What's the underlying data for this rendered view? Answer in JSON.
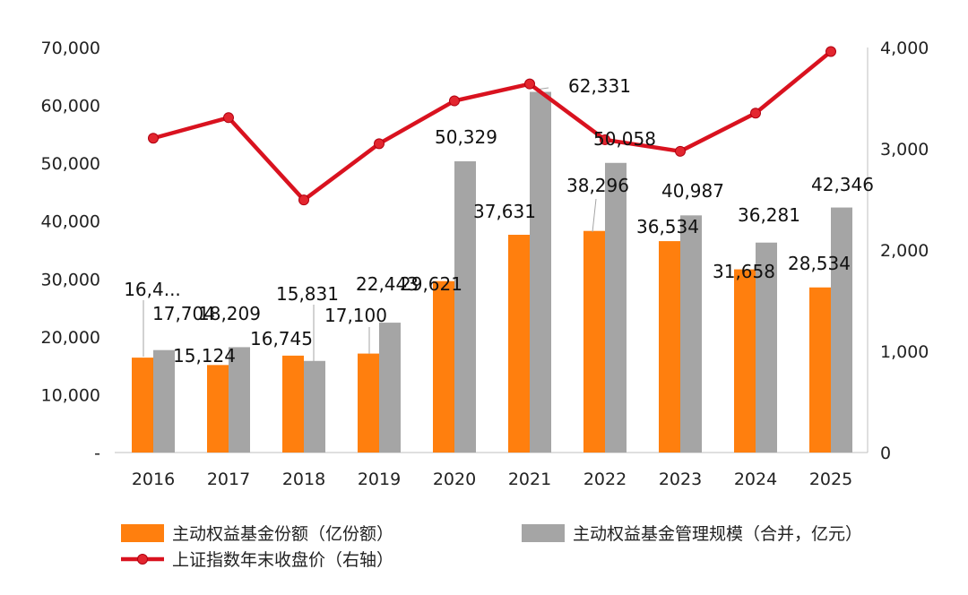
{
  "chart_data": {
    "type": "bar",
    "categories": [
      "2016",
      "2017",
      "2018",
      "2019",
      "2020",
      "2021",
      "2022",
      "2023",
      "2024",
      "2025"
    ],
    "series": [
      {
        "name": "主动权益基金份额（亿份额）",
        "kind": "bar",
        "axis": "left",
        "color": "#ff7f0e",
        "values": [
          16400,
          15124,
          16745,
          17100,
          29621,
          37631,
          38296,
          36534,
          31658,
          28534
        ],
        "labels": [
          "16,4...",
          "15,124",
          "16,745",
          "17,100",
          "29,621",
          "37,631",
          "38,296",
          "36,534",
          "31,658",
          "28,534"
        ]
      },
      {
        "name": "主动权益基金管理规模（合并，亿元）",
        "kind": "bar",
        "axis": "left",
        "color": "#a5a5a5",
        "values": [
          17704,
          18209,
          15831,
          22443,
          50329,
          62331,
          50058,
          40987,
          36281,
          42346
        ],
        "labels": [
          "17,704",
          "18,209",
          "15,831",
          "22,443",
          "50,329",
          "62,331",
          "50,058",
          "40,987",
          "36,281",
          "42,346"
        ]
      },
      {
        "name": "上证指数年末收盘价（右轴）",
        "kind": "line",
        "axis": "right",
        "color": "#d9121f",
        "values": [
          3104,
          3307,
          2494,
          3050,
          3473,
          3640,
          3089,
          2975,
          3352,
          3960
        ]
      }
    ],
    "left_axis": {
      "ylim": [
        0,
        70000
      ],
      "ticks": [
        "-",
        "10,000",
        "20,000",
        "30,000",
        "40,000",
        "50,000",
        "60,000",
        "70,000"
      ]
    },
    "right_axis": {
      "ylim": [
        0,
        4000
      ],
      "ticks": [
        "0",
        "1,000",
        "2,000",
        "3,000",
        "4,000"
      ]
    },
    "legend_position": "bottom",
    "grid": false
  }
}
